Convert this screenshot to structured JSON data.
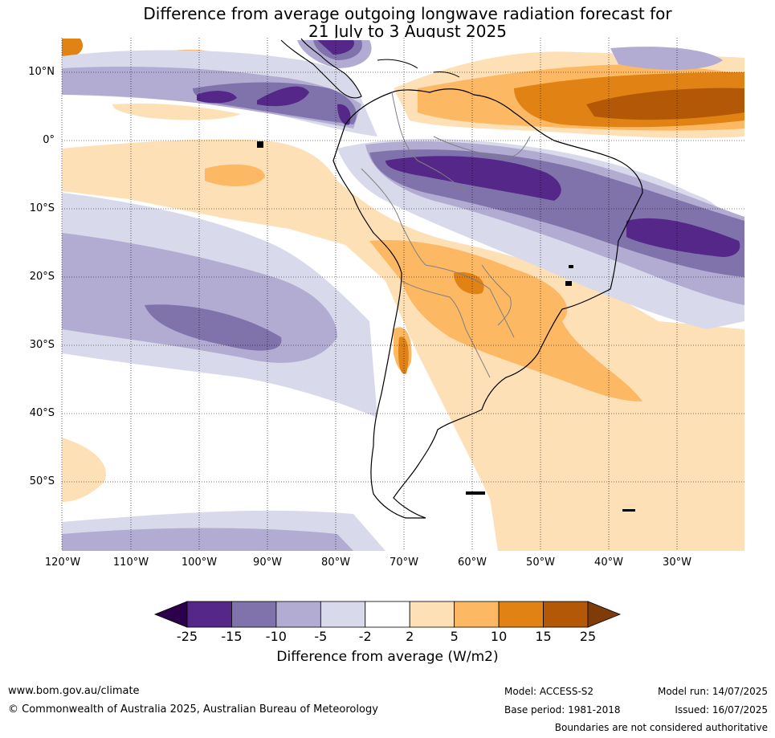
{
  "title": {
    "line1": "Difference from average outgoing longwave radiation forecast for",
    "line2": "21 July to 3 August 2025"
  },
  "map": {
    "lat_labels": [
      "10°N",
      "0°",
      "10°S",
      "20°S",
      "30°S",
      "40°S",
      "50°S"
    ],
    "lon_labels": [
      "120°W",
      "110°W",
      "100°W",
      "90°W",
      "80°W",
      "70°W",
      "60°W",
      "50°W",
      "40°W",
      "30°W"
    ],
    "region": "South America",
    "lon_range": [
      -120,
      -20
    ],
    "lat_range": [
      -60,
      15
    ]
  },
  "colorbar": {
    "title": "Difference from average (W/m2)",
    "ticks": [
      "-25",
      "-15",
      "-10",
      "-5",
      "-2",
      "2",
      "5",
      "10",
      "15",
      "25"
    ],
    "colors": [
      "#2d004b",
      "#542788",
      "#8073ac",
      "#b2abd2",
      "#d8daeb",
      "#ffffff",
      "#fee0b6",
      "#fdb863",
      "#e08214",
      "#b35806",
      "#7f3b08"
    ]
  },
  "footer": {
    "website": "www.bom.gov.au/climate",
    "copyright": "© Commonwealth of Australia 2025, Australian Bureau of Meteorology",
    "model": "Model: ACCESS-S2",
    "model_run": "Model run: 14/07/2025",
    "base_period": "Base period: 1981-2018",
    "issued": "Issued: 16/07/2025",
    "disclaimer": "Boundaries are not considered authoritative"
  }
}
